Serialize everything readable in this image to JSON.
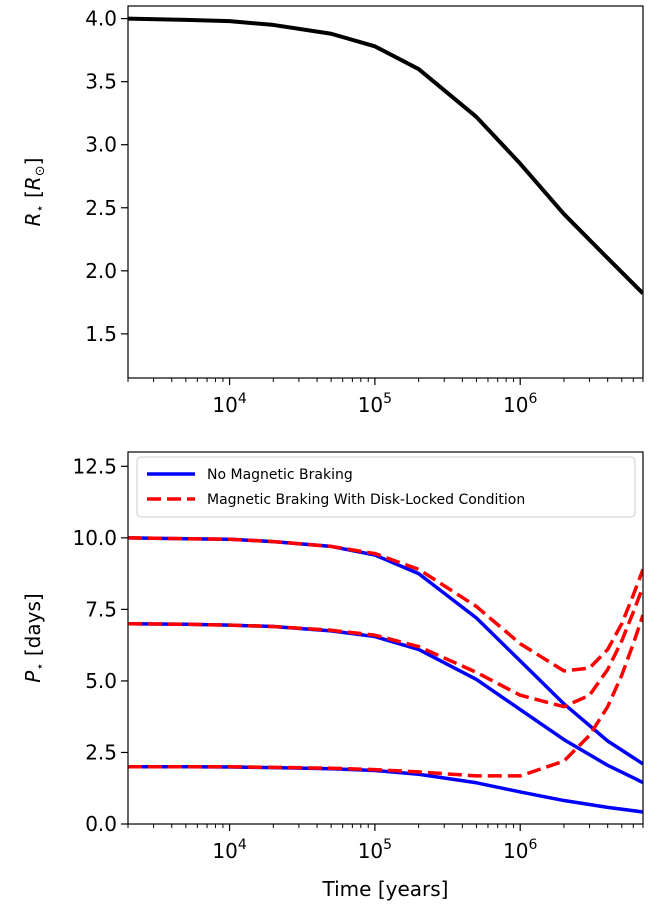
{
  "chart_data": [
    {
      "type": "line",
      "xscale": "log",
      "xlim": [
        2000,
        7000000
      ],
      "ylim": [
        1.15,
        4.1
      ],
      "xlabel": "",
      "ylabel": "R⋆ [R⊙]",
      "ylabel_main": "R",
      "ylabel_sub": "⋆",
      "ylabel_unit_open": " [R",
      "ylabel_unit_sub": "⊙",
      "ylabel_unit_close": "]",
      "xticks": [
        10000,
        100000,
        1000000
      ],
      "xtick_labels": [
        {
          "base": "10",
          "exp": "4"
        },
        {
          "base": "10",
          "exp": "5"
        },
        {
          "base": "10",
          "exp": "6"
        }
      ],
      "yticks": [
        1.5,
        2.0,
        2.5,
        3.0,
        3.5,
        4.0
      ],
      "ytick_labels": [
        "1.5",
        "2.0",
        "2.5",
        "3.0",
        "3.5",
        "4.0"
      ],
      "grid": false,
      "series": [
        {
          "color": "#000000",
          "style": "solid",
          "x": [
            2000,
            5000,
            10000,
            20000,
            50000,
            100000,
            200000,
            500000,
            1000000,
            2000000,
            4000000,
            7000000
          ],
          "y": [
            4.0,
            3.99,
            3.98,
            3.95,
            3.88,
            3.78,
            3.6,
            3.22,
            2.85,
            2.45,
            2.1,
            1.82
          ]
        }
      ]
    },
    {
      "type": "line",
      "xscale": "log",
      "xlim": [
        2000,
        7000000
      ],
      "ylim": [
        0,
        13
      ],
      "xlabel": "Time [years]",
      "ylabel": "P⋆ [days]",
      "ylabel_main": "P",
      "ylabel_sub": "⋆",
      "ylabel_unit": " [days]",
      "xticks": [
        10000,
        100000,
        1000000
      ],
      "xtick_labels": [
        {
          "base": "10",
          "exp": "4"
        },
        {
          "base": "10",
          "exp": "5"
        },
        {
          "base": "10",
          "exp": "6"
        }
      ],
      "yticks": [
        0.0,
        2.5,
        5.0,
        7.5,
        10.0,
        12.5
      ],
      "ytick_labels": [
        "0.0",
        "2.5",
        "5.0",
        "7.5",
        "10.0",
        "12.5"
      ],
      "grid": false,
      "legend_position": "top-left",
      "legend": [
        {
          "name": "No Magnetic Braking",
          "color": "#0000ff",
          "style": "solid"
        },
        {
          "name": "Magnetic Braking With Disk-Locked Condition",
          "color": "#ff0000",
          "style": "dashed"
        }
      ],
      "series": [
        {
          "group": "No Magnetic Braking",
          "color": "#0000ff",
          "style": "solid",
          "x": [
            2000,
            5000,
            10000,
            20000,
            50000,
            100000,
            200000,
            500000,
            1000000,
            2000000,
            4000000,
            7000000
          ],
          "y": [
            10.0,
            9.97,
            9.95,
            9.87,
            9.7,
            9.4,
            8.75,
            7.2,
            5.7,
            4.2,
            2.9,
            2.1
          ]
        },
        {
          "group": "No Magnetic Braking",
          "color": "#0000ff",
          "style": "solid",
          "x": [
            2000,
            5000,
            10000,
            20000,
            50000,
            100000,
            200000,
            500000,
            1000000,
            2000000,
            4000000,
            7000000
          ],
          "y": [
            7.0,
            6.98,
            6.95,
            6.9,
            6.75,
            6.55,
            6.1,
            5.05,
            4.0,
            2.95,
            2.05,
            1.45
          ]
        },
        {
          "group": "No Magnetic Braking",
          "color": "#0000ff",
          "style": "solid",
          "x": [
            2000,
            5000,
            10000,
            20000,
            50000,
            100000,
            200000,
            500000,
            1000000,
            2000000,
            4000000,
            7000000
          ],
          "y": [
            2.0,
            2.0,
            1.99,
            1.97,
            1.93,
            1.87,
            1.74,
            1.44,
            1.12,
            0.82,
            0.58,
            0.42
          ]
        },
        {
          "group": "Magnetic Braking With Disk-Locked Condition",
          "color": "#ff0000",
          "style": "dashed",
          "x": [
            2000,
            5000,
            10000,
            20000,
            50000,
            100000,
            200000,
            500000,
            1000000,
            2000000,
            3000000,
            4000000,
            5000000,
            6000000,
            7000000
          ],
          "y": [
            10.0,
            9.97,
            9.95,
            9.87,
            9.7,
            9.45,
            8.9,
            7.6,
            6.3,
            5.35,
            5.45,
            6.1,
            7.0,
            8.0,
            8.9
          ]
        },
        {
          "group": "Magnetic Braking With Disk-Locked Condition",
          "color": "#ff0000",
          "style": "dashed",
          "x": [
            2000,
            5000,
            10000,
            20000,
            50000,
            100000,
            200000,
            500000,
            1000000,
            2000000,
            3000000,
            4000000,
            5000000,
            6000000,
            7000000
          ],
          "y": [
            7.0,
            6.98,
            6.95,
            6.9,
            6.77,
            6.6,
            6.2,
            5.3,
            4.5,
            4.1,
            4.5,
            5.4,
            6.4,
            7.4,
            8.3
          ]
        },
        {
          "group": "Magnetic Braking With Disk-Locked Condition",
          "color": "#ff0000",
          "style": "dashed",
          "x": [
            2000,
            5000,
            10000,
            20000,
            50000,
            100000,
            200000,
            500000,
            1000000,
            2000000,
            3000000,
            4000000,
            5000000,
            6000000,
            7000000
          ],
          "y": [
            2.0,
            2.0,
            2.0,
            1.98,
            1.95,
            1.9,
            1.82,
            1.68,
            1.68,
            2.2,
            3.1,
            4.1,
            5.2,
            6.3,
            7.3
          ]
        }
      ]
    }
  ]
}
